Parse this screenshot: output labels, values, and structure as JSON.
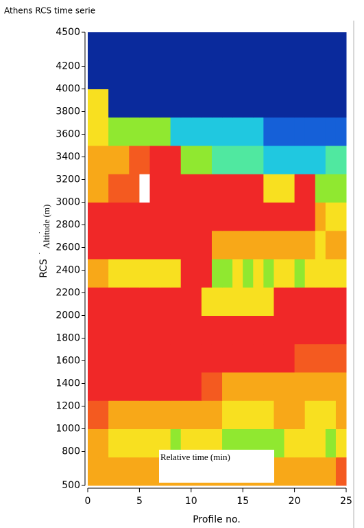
{
  "chart_data": {
    "type": "heatmap",
    "title": "Athens RCS time serie",
    "xlabel": "Profile no.",
    "ylabel": "RCS (a.u.)",
    "overlay_ylabel": "Altitude (m)",
    "overlay_xlabel": "Relative time (min)",
    "xlim": [
      0,
      25
    ],
    "xticks": [
      0,
      5,
      10,
      15,
      20,
      25
    ],
    "ylim": [
      500,
      4500
    ],
    "yticks": [
      500,
      800,
      1000,
      1200,
      1400,
      1600,
      1800,
      2000,
      2200,
      2400,
      2600,
      2800,
      3000,
      3200,
      3400,
      3600,
      3800,
      4000,
      4200,
      4500
    ],
    "colorscale": [
      "#0a2a9c",
      "#1560d8",
      "#20c8e0",
      "#50e8a0",
      "#90e830",
      "#f8e020",
      "#f8a818",
      "#f45a20",
      "#f02828",
      "#ffffff"
    ],
    "z": [
      [
        6,
        6,
        6,
        6,
        6,
        6,
        6,
        6,
        6,
        6,
        6,
        6,
        6,
        6,
        6,
        6,
        6,
        6,
        6,
        6,
        6,
        6,
        6,
        6,
        7
      ],
      [
        6,
        6,
        5,
        5,
        5,
        5,
        5,
        5,
        4,
        5,
        5,
        5,
        5,
        4,
        4,
        4,
        4,
        4,
        4,
        5,
        5,
        5,
        5,
        4,
        5
      ],
      [
        7,
        7,
        6,
        6,
        6,
        6,
        6,
        6,
        6,
        6,
        6,
        6,
        6,
        5,
        5,
        5,
        5,
        5,
        6,
        6,
        6,
        5,
        5,
        5,
        6
      ],
      [
        8,
        8,
        8,
        8,
        8,
        8,
        8,
        8,
        8,
        8,
        8,
        7,
        7,
        6,
        6,
        6,
        6,
        6,
        6,
        6,
        6,
        6,
        6,
        6,
        6
      ],
      [
        8,
        8,
        8,
        8,
        8,
        8,
        8,
        8,
        8,
        8,
        8,
        8,
        8,
        8,
        8,
        8,
        8,
        8,
        8,
        8,
        7,
        7,
        7,
        7,
        7
      ],
      [
        8,
        8,
        8,
        8,
        8,
        8,
        8,
        8,
        8,
        8,
        8,
        8,
        8,
        8,
        8,
        8,
        8,
        8,
        8,
        8,
        8,
        8,
        8,
        8,
        8
      ],
      [
        8,
        8,
        8,
        8,
        8,
        8,
        8,
        8,
        8,
        8,
        8,
        5,
        5,
        5,
        5,
        5,
        5,
        5,
        8,
        8,
        8,
        8,
        8,
        8,
        8
      ],
      [
        6,
        6,
        5,
        5,
        5,
        5,
        5,
        5,
        5,
        8,
        8,
        8,
        4,
        4,
        5,
        4,
        5,
        4,
        5,
        5,
        4,
        5,
        5,
        5,
        5
      ],
      [
        8,
        8,
        8,
        8,
        8,
        8,
        8,
        8,
        8,
        8,
        8,
        8,
        6,
        6,
        6,
        6,
        6,
        6,
        6,
        6,
        6,
        6,
        5,
        6,
        6
      ],
      [
        8,
        8,
        8,
        8,
        8,
        8,
        8,
        8,
        8,
        8,
        8,
        8,
        8,
        8,
        8,
        8,
        8,
        8,
        8,
        8,
        8,
        8,
        6,
        5,
        5
      ],
      [
        6,
        6,
        7,
        7,
        7,
        9,
        8,
        8,
        8,
        8,
        8,
        8,
        8,
        8,
        8,
        8,
        8,
        5,
        5,
        5,
        8,
        8,
        4,
        4,
        4
      ],
      [
        6,
        6,
        6,
        6,
        7,
        7,
        8,
        8,
        8,
        4,
        4,
        4,
        3,
        3,
        3,
        3,
        3,
        2,
        2,
        2,
        2,
        2,
        2,
        3,
        3
      ],
      [
        5,
        5,
        4,
        4,
        4,
        4,
        4,
        4,
        2,
        2,
        2,
        2,
        2,
        2,
        2,
        2,
        2,
        1,
        1,
        1,
        1,
        1,
        1,
        1,
        1
      ],
      [
        5,
        5,
        0,
        0,
        0,
        0,
        0,
        0,
        0,
        0,
        0,
        0,
        0,
        0,
        0,
        0,
        0,
        0,
        0,
        0,
        0,
        0,
        0,
        0,
        0
      ],
      [
        0,
        0,
        0,
        0,
        0,
        0,
        0,
        0,
        0,
        0,
        0,
        0,
        0,
        0,
        0,
        0,
        0,
        0,
        0,
        0,
        0,
        0,
        0,
        0,
        0
      ],
      [
        0,
        0,
        0,
        0,
        0,
        0,
        0,
        0,
        0,
        0,
        0,
        0,
        0,
        0,
        0,
        0,
        0,
        0,
        0,
        0,
        0,
        0,
        0,
        0,
        0
      ]
    ]
  }
}
